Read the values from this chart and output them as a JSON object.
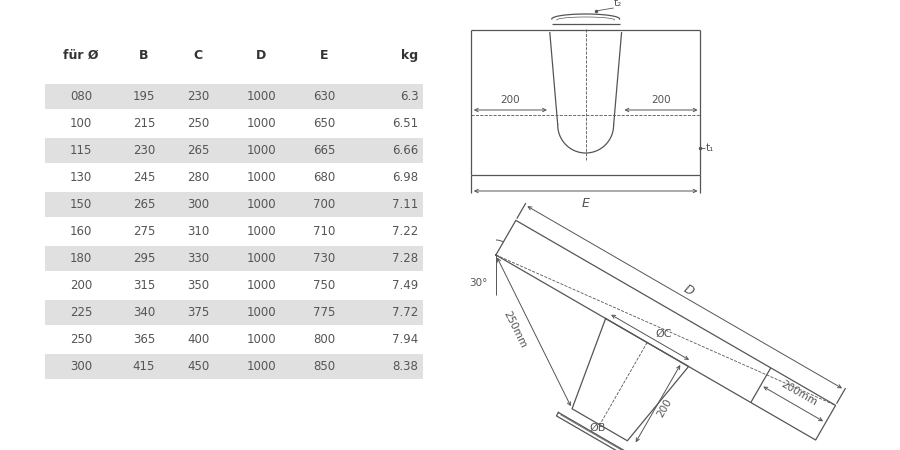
{
  "bg_color": "#ffffff",
  "table_header": [
    "für Ø",
    "B",
    "C",
    "D",
    "E",
    "kg"
  ],
  "table_rows": [
    [
      "080",
      "195",
      "230",
      "1000",
      "630",
      "6.3"
    ],
    [
      "100",
      "215",
      "250",
      "1000",
      "650",
      "6.51"
    ],
    [
      "115",
      "230",
      "265",
      "1000",
      "665",
      "6.66"
    ],
    [
      "130",
      "245",
      "280",
      "1000",
      "680",
      "6.98"
    ],
    [
      "150",
      "265",
      "300",
      "1000",
      "700",
      "7.11"
    ],
    [
      "160",
      "275",
      "310",
      "1000",
      "710",
      "7.22"
    ],
    [
      "180",
      "295",
      "330",
      "1000",
      "730",
      "7.28"
    ],
    [
      "200",
      "315",
      "350",
      "1000",
      "750",
      "7.49"
    ],
    [
      "225",
      "340",
      "375",
      "1000",
      "775",
      "7.72"
    ],
    [
      "250",
      "365",
      "400",
      "1000",
      "800",
      "7.94"
    ],
    [
      "300",
      "415",
      "450",
      "1000",
      "850",
      "8.38"
    ]
  ],
  "shaded_rows": [
    0,
    2,
    4,
    6,
    8,
    10
  ],
  "row_shade_color": "#e0e0e0",
  "text_color": "#555555",
  "header_color": "#333333",
  "line_color": "#555555"
}
